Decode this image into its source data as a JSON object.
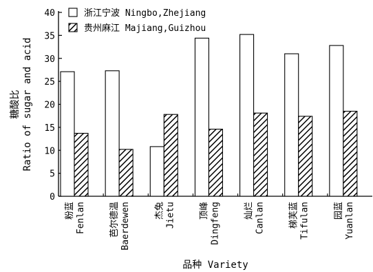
{
  "chart_data": {
    "type": "bar",
    "categories": [
      [
        "粉蓝",
        "Fenlan"
      ],
      [
        "芭尔德温",
        "Baerdewen"
      ],
      [
        "杰兔",
        "Jietu"
      ],
      [
        "顶峰",
        "Dingfeng"
      ],
      [
        "灿烂",
        "Canlan"
      ],
      [
        "梯芙蓝",
        "Tifulan"
      ],
      [
        "园蓝",
        "Yuanlan"
      ]
    ],
    "series": [
      {
        "name": "浙江宁波 Ningbo,Zhejiang",
        "fill": "#ffffff",
        "values": [
          27.1,
          27.3,
          10.8,
          34.4,
          35.2,
          31.0,
          32.8
        ]
      },
      {
        "name": "贵州麻江 Majiang,Guizhou",
        "fill": "hatch",
        "values": [
          13.7,
          10.2,
          17.8,
          14.6,
          18.1,
          17.4,
          18.5
        ]
      }
    ],
    "ylabel_lines": [
      "糖酸比",
      "Ratio of sugar and acid"
    ],
    "xlabel": "品种 Variety",
    "ylim": [
      0,
      40
    ],
    "yticks": [
      0,
      5,
      10,
      15,
      20,
      25,
      30,
      35,
      40
    ],
    "legend_position": "top-left",
    "grid": false
  }
}
